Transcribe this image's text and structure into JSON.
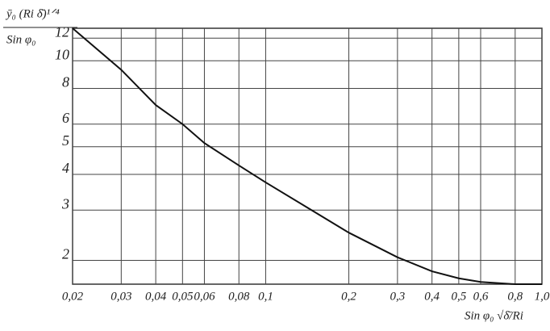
{
  "chart_data": {
    "type": "line",
    "y_label": "ȳ₀ (Ri δ̄)¹ᐟ⁴",
    "y_label_denominator": "Sin φ₀",
    "x_label": "Sin φ₀ √δ̄/Ri",
    "x_log": true,
    "y_log": true,
    "grid": true,
    "xlim": [
      0.02,
      1.0
    ],
    "ylim": [
      1.65,
      13
    ],
    "xticks": [
      {
        "value": 0.02,
        "label": "0,02"
      },
      {
        "value": 0.03,
        "label": "0,03"
      },
      {
        "value": 0.04,
        "label": "0,04"
      },
      {
        "value": 0.05,
        "label": "0,05"
      },
      {
        "value": 0.06,
        "label": "0,06"
      },
      {
        "value": 0.08,
        "label": "0,08"
      },
      {
        "value": 0.1,
        "label": "0,1"
      },
      {
        "value": 0.2,
        "label": "0,2"
      },
      {
        "value": 0.3,
        "label": "0,3"
      },
      {
        "value": 0.4,
        "label": "0,4"
      },
      {
        "value": 0.5,
        "label": "0,5"
      },
      {
        "value": 0.6,
        "label": "0,6"
      },
      {
        "value": 0.8,
        "label": "0,8"
      },
      {
        "value": 1.0,
        "label": "1,0"
      }
    ],
    "yticks": [
      2,
      3,
      4,
      5,
      6,
      8,
      10,
      12
    ],
    "color": "#111111",
    "x": [
      0.02,
      0.03,
      0.04,
      0.05,
      0.06,
      0.08,
      0.1,
      0.2,
      0.3,
      0.4,
      0.5,
      0.6,
      0.8,
      1.0
    ],
    "values": [
      13,
      9.3,
      7.0,
      6.0,
      5.15,
      4.3,
      3.75,
      2.5,
      2.05,
      1.83,
      1.73,
      1.68,
      1.65,
      1.65
    ]
  }
}
